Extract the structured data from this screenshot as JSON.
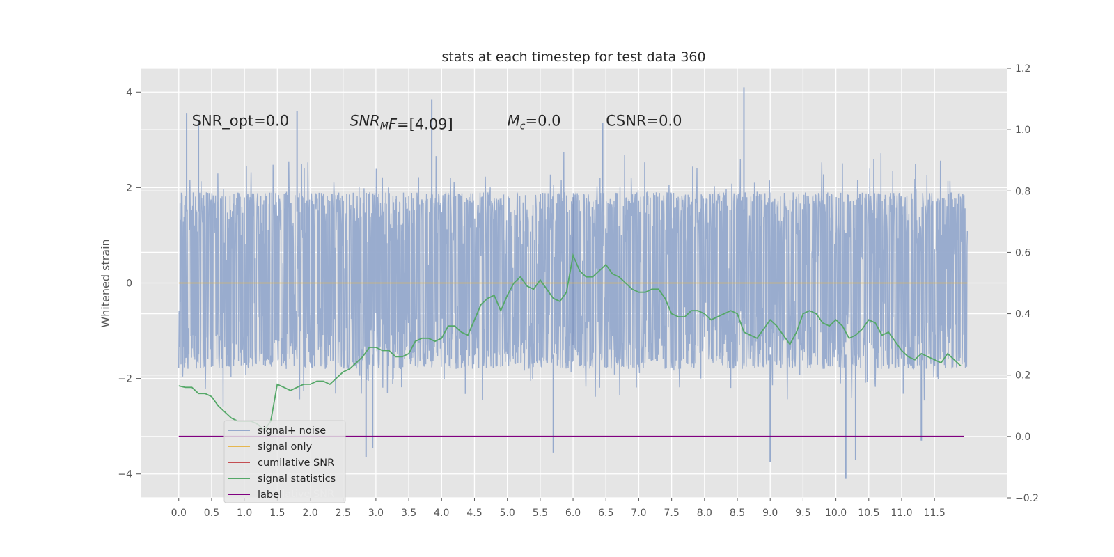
{
  "chart_data": {
    "type": "line",
    "title": "stats at each timestep for test data 360",
    "ylabel": "Whitened strain",
    "xlabel": "",
    "xlim": [
      -0.58,
      12.6
    ],
    "ylim": [
      -4.5,
      4.5
    ],
    "y2lim": [
      -0.2,
      1.2
    ],
    "grid": true,
    "legend_placement": "lower-left",
    "x_ticks": [
      "0.0",
      "0.5",
      "1.0",
      "1.5",
      "2.0",
      "2.5",
      "3.0",
      "3.5",
      "4.0",
      "4.5",
      "5.0",
      "5.5",
      "6.0",
      "6.5",
      "7.0",
      "7.5",
      "8.0",
      "8.5",
      "9.0",
      "9.5",
      "10.0",
      "10.5",
      "11.0",
      "11.5"
    ],
    "y_ticks": [
      "4",
      "2",
      "0",
      "−2",
      "−4"
    ],
    "y2_ticks": [
      "1.2",
      "1.0",
      "0.8",
      "0.6",
      "0.4",
      "0.2",
      "0.0",
      "−0.2"
    ],
    "annotations": [
      {
        "text": "SNR_opt=0.0",
        "x": 0.2,
        "y": 3.3
      },
      {
        "text": "SNR",
        "sub": "M",
        "tail": "F=[4.09]",
        "x": 2.6,
        "y": 3.3
      },
      {
        "text": "M",
        "sub": "c",
        "tail": "=0.0",
        "x": 5.0,
        "y": 3.3
      },
      {
        "text": "CSNR=0.0",
        "x": 6.5,
        "y": 3.3
      }
    ],
    "series": [
      {
        "name": "signal+ noise",
        "color": "#95a9cc",
        "axis": "left",
        "x_range": [
          0.0,
          12.0
        ],
        "y_typical_range": [
          -1.8,
          1.9
        ],
        "y_extremes": [
          [
            0.12,
            3.55
          ],
          [
            0.3,
            3.4
          ],
          [
            1.8,
            3.6
          ],
          [
            3.85,
            3.85
          ],
          [
            8.6,
            4.1
          ],
          [
            6.45,
            3.35
          ],
          [
            2.85,
            -3.65
          ],
          [
            9.0,
            -3.75
          ],
          [
            10.15,
            -4.1
          ],
          [
            10.3,
            -3.7
          ],
          [
            5.7,
            -3.55
          ],
          [
            11.3,
            -3.3
          ],
          [
            2.95,
            -3.45
          ]
        ]
      },
      {
        "name": "signal only",
        "color": "#e6b74f",
        "axis": "left",
        "x": [
          0.0,
          12.0
        ],
        "y": [
          0.0,
          0.0
        ]
      },
      {
        "name": "cumilative SNR",
        "color": "#c44e52",
        "axis": "right",
        "x": [],
        "y": []
      },
      {
        "name": "signal statistics",
        "color": "#55a868",
        "axis": "right",
        "x": [
          0.0,
          0.1,
          0.2,
          0.3,
          0.4,
          0.5,
          0.6,
          0.7,
          0.8,
          0.9,
          1.0,
          1.1,
          1.2,
          1.3,
          1.4,
          1.5,
          1.6,
          1.7,
          1.8,
          1.9,
          2.0,
          2.1,
          2.2,
          2.3,
          2.4,
          2.5,
          2.6,
          2.7,
          2.8,
          2.9,
          3.0,
          3.1,
          3.2,
          3.3,
          3.4,
          3.5,
          3.6,
          3.7,
          3.8,
          3.9,
          4.0,
          4.1,
          4.2,
          4.3,
          4.4,
          4.5,
          4.6,
          4.7,
          4.8,
          4.9,
          5.0,
          5.1,
          5.2,
          5.3,
          5.4,
          5.5,
          5.6,
          5.7,
          5.8,
          5.9,
          6.0,
          6.1,
          6.2,
          6.3,
          6.4,
          6.5,
          6.6,
          6.7,
          6.8,
          6.9,
          7.0,
          7.1,
          7.2,
          7.3,
          7.4,
          7.5,
          7.6,
          7.7,
          7.8,
          7.9,
          8.0,
          8.1,
          8.2,
          8.3,
          8.4,
          8.5,
          8.6,
          8.7,
          8.8,
          8.9,
          9.0,
          9.1,
          9.2,
          9.3,
          9.4,
          9.5,
          9.6,
          9.7,
          9.8,
          9.9,
          10.0,
          10.1,
          10.2,
          10.3,
          10.4,
          10.5,
          10.6,
          10.7,
          10.8,
          10.9,
          11.0,
          11.1,
          11.2,
          11.3,
          11.4,
          11.5,
          11.6,
          11.7,
          11.8,
          11.9
        ],
        "y": [
          0.165,
          0.16,
          0.16,
          0.14,
          0.14,
          0.13,
          0.1,
          0.08,
          0.06,
          0.05,
          0.05,
          0.05,
          0.04,
          0.02,
          0.05,
          0.17,
          0.16,
          0.15,
          0.16,
          0.17,
          0.17,
          0.18,
          0.18,
          0.17,
          0.19,
          0.21,
          0.22,
          0.24,
          0.26,
          0.29,
          0.29,
          0.28,
          0.28,
          0.26,
          0.26,
          0.27,
          0.31,
          0.32,
          0.32,
          0.31,
          0.32,
          0.36,
          0.36,
          0.34,
          0.33,
          0.38,
          0.43,
          0.45,
          0.46,
          0.41,
          0.46,
          0.5,
          0.52,
          0.49,
          0.48,
          0.51,
          0.48,
          0.45,
          0.44,
          0.47,
          0.59,
          0.54,
          0.52,
          0.52,
          0.54,
          0.56,
          0.53,
          0.52,
          0.5,
          0.48,
          0.47,
          0.47,
          0.48,
          0.48,
          0.45,
          0.4,
          0.39,
          0.39,
          0.41,
          0.41,
          0.4,
          0.38,
          0.39,
          0.4,
          0.41,
          0.4,
          0.34,
          0.33,
          0.32,
          0.35,
          0.38,
          0.36,
          0.33,
          0.3,
          0.34,
          0.4,
          0.41,
          0.4,
          0.37,
          0.36,
          0.38,
          0.36,
          0.32,
          0.33,
          0.35,
          0.38,
          0.37,
          0.33,
          0.34,
          0.31,
          0.28,
          0.26,
          0.25,
          0.27,
          0.26,
          0.25,
          0.24,
          0.27,
          0.25,
          0.23
        ]
      },
      {
        "name": "label",
        "color": "#800080",
        "axis": "right",
        "x": [
          0.0,
          11.95
        ],
        "y": [
          0.0,
          0.0
        ]
      }
    ],
    "legend_overlap_text": "cumilative SNR"
  }
}
